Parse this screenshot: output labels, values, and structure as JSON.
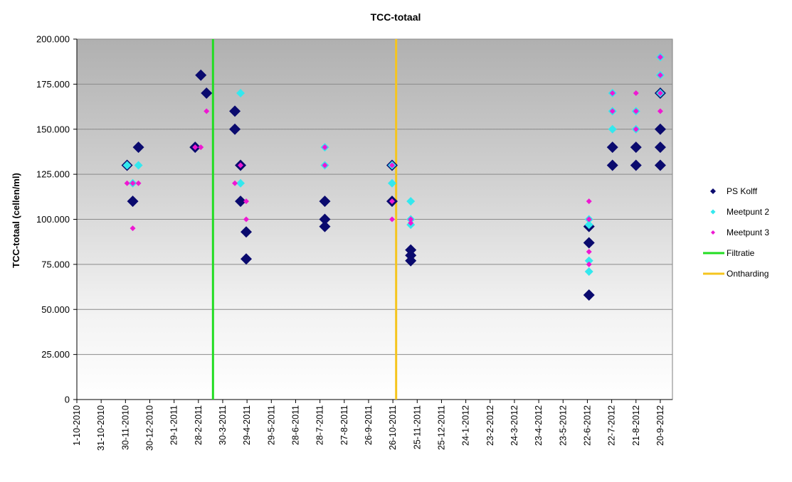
{
  "chart_data": {
    "type": "scatter",
    "title": "TCC-totaal",
    "ylabel": "TCC-totaal (cellen/ml)",
    "xlabel": "",
    "xlim": [
      "2010-10-01",
      "2012-10-05"
    ],
    "ylim": [
      0,
      200000
    ],
    "yticks": [
      0,
      25000,
      50000,
      75000,
      100000,
      125000,
      150000,
      175000,
      200000
    ],
    "ytick_labels": [
      "0",
      "25.000",
      "50.000",
      "75.000",
      "100.000",
      "125.000",
      "150.000",
      "175.000",
      "200.000"
    ],
    "xtick_dates": [
      "2010-10-01",
      "2010-10-31",
      "2010-11-30",
      "2010-12-30",
      "2011-01-29",
      "2011-02-28",
      "2011-03-30",
      "2011-04-29",
      "2011-05-29",
      "2011-06-28",
      "2011-07-28",
      "2011-08-27",
      "2011-09-26",
      "2011-10-26",
      "2011-11-25",
      "2011-12-25",
      "2012-01-24",
      "2012-02-23",
      "2012-03-24",
      "2012-04-23",
      "2012-05-23",
      "2012-06-22",
      "2012-07-22",
      "2012-08-21",
      "2012-09-20"
    ],
    "xtick_labels": [
      "1-10-2010",
      "31-10-2010",
      "30-11-2010",
      "30-12-2010",
      "29-1-2011",
      "28-2-2011",
      "30-3-2011",
      "29-4-2011",
      "29-5-2011",
      "28-6-2011",
      "28-7-2011",
      "27-8-2011",
      "26-9-2011",
      "26-10-2011",
      "25-11-2011",
      "25-12-2011",
      "24-1-2012",
      "23-2-2012",
      "24-3-2012",
      "23-4-2012",
      "23-5-2012",
      "22-6-2012",
      "22-7-2012",
      "21-8-2012",
      "20-9-2012"
    ],
    "grid": true,
    "legend_position": "right",
    "background": "gradient-gray-to-white",
    "series": [
      {
        "name": "PS Kolff",
        "color": "#0a0a6e",
        "marker": "diamond-large",
        "points": [
          [
            "2010-12-02",
            130000
          ],
          [
            "2010-12-09",
            110000
          ],
          [
            "2010-12-16",
            140000
          ],
          [
            "2011-02-24",
            140000
          ],
          [
            "2011-03-03",
            180000
          ],
          [
            "2011-03-10",
            170000
          ],
          [
            "2011-04-14",
            160000
          ],
          [
            "2011-04-14",
            150000
          ],
          [
            "2011-04-21",
            130000
          ],
          [
            "2011-04-21",
            110000
          ],
          [
            "2011-04-28",
            93000
          ],
          [
            "2011-04-28",
            78000
          ],
          [
            "2011-08-03",
            110000
          ],
          [
            "2011-08-03",
            100000
          ],
          [
            "2011-08-03",
            96000
          ],
          [
            "2011-10-25",
            130000
          ],
          [
            "2011-10-25",
            110000
          ],
          [
            "2011-11-17",
            83000
          ],
          [
            "2011-11-17",
            80000
          ],
          [
            "2011-11-17",
            77000
          ],
          [
            "2012-06-24",
            96000
          ],
          [
            "2012-06-24",
            87000
          ],
          [
            "2012-06-24",
            58000
          ],
          [
            "2012-07-23",
            140000
          ],
          [
            "2012-07-23",
            130000
          ],
          [
            "2012-08-21",
            140000
          ],
          [
            "2012-08-21",
            130000
          ],
          [
            "2012-09-20",
            170000
          ],
          [
            "2012-09-20",
            150000
          ],
          [
            "2012-09-20",
            140000
          ],
          [
            "2012-09-20",
            130000
          ]
        ]
      },
      {
        "name": "Meetpunt 2",
        "color": "#33e8ee",
        "marker": "diamond-medium",
        "points": [
          [
            "2010-12-02",
            130000
          ],
          [
            "2010-12-09",
            120000
          ],
          [
            "2010-12-16",
            130000
          ],
          [
            "2011-04-21",
            170000
          ],
          [
            "2011-04-21",
            120000
          ],
          [
            "2011-08-03",
            140000
          ],
          [
            "2011-08-03",
            130000
          ],
          [
            "2011-10-25",
            130000
          ],
          [
            "2011-10-25",
            120000
          ],
          [
            "2011-11-17",
            110000
          ],
          [
            "2011-11-17",
            100000
          ],
          [
            "2011-11-17",
            97000
          ],
          [
            "2012-06-24",
            100000
          ],
          [
            "2012-06-24",
            97000
          ],
          [
            "2012-06-24",
            77000
          ],
          [
            "2012-06-24",
            71000
          ],
          [
            "2012-07-23",
            170000
          ],
          [
            "2012-07-23",
            160000
          ],
          [
            "2012-07-23",
            150000
          ],
          [
            "2012-08-21",
            160000
          ],
          [
            "2012-08-21",
            150000
          ],
          [
            "2012-09-20",
            190000
          ],
          [
            "2012-09-20",
            180000
          ],
          [
            "2012-09-20",
            170000
          ]
        ]
      },
      {
        "name": "Meetpunt 3",
        "color": "#ee18d2",
        "marker": "diamond-small",
        "points": [
          [
            "2010-12-02",
            120000
          ],
          [
            "2010-12-09",
            120000
          ],
          [
            "2010-12-16",
            120000
          ],
          [
            "2010-12-09",
            95000
          ],
          [
            "2011-02-24",
            140000
          ],
          [
            "2011-03-03",
            140000
          ],
          [
            "2011-03-10",
            160000
          ],
          [
            "2011-04-14",
            120000
          ],
          [
            "2011-04-21",
            130000
          ],
          [
            "2011-04-28",
            110000
          ],
          [
            "2011-04-28",
            100000
          ],
          [
            "2011-08-03",
            140000
          ],
          [
            "2011-08-03",
            130000
          ],
          [
            "2011-10-25",
            130000
          ],
          [
            "2011-10-25",
            110000
          ],
          [
            "2011-10-25",
            100000
          ],
          [
            "2011-11-17",
            100000
          ],
          [
            "2011-11-17",
            98000
          ],
          [
            "2012-06-24",
            110000
          ],
          [
            "2012-06-24",
            100000
          ],
          [
            "2012-06-24",
            82000
          ],
          [
            "2012-06-24",
            75000
          ],
          [
            "2012-07-23",
            170000
          ],
          [
            "2012-07-23",
            160000
          ],
          [
            "2012-08-21",
            170000
          ],
          [
            "2012-08-21",
            160000
          ],
          [
            "2012-08-21",
            150000
          ],
          [
            "2012-09-20",
            190000
          ],
          [
            "2012-09-20",
            180000
          ],
          [
            "2012-09-20",
            170000
          ],
          [
            "2012-09-20",
            160000
          ]
        ]
      }
    ],
    "vlines": [
      {
        "name": "Filtratie",
        "date": "2011-03-18",
        "color": "#22dd22"
      },
      {
        "name": "Ontharding",
        "date": "2011-10-30",
        "color": "#f5c51e"
      }
    ]
  }
}
